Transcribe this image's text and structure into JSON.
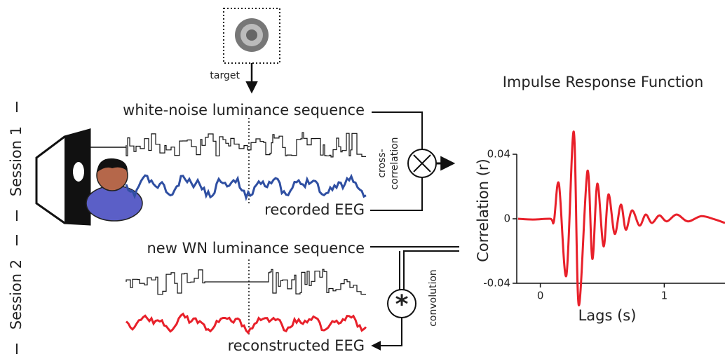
{
  "stimulus": {
    "target_label": "target"
  },
  "session_1": {
    "label": "Session 1",
    "sequence_label": "white-noise luminance sequence",
    "operation_label": [
      "cross-",
      "correlation"
    ],
    "output_label": "recorded EEG"
  },
  "session_2": {
    "label": "Session 2",
    "sequence_label": "new WN luminance sequence",
    "operation_label": "convolution",
    "output_label": "reconstructed EEG"
  },
  "irf_chart": {
    "type": "line",
    "title": "Impulse Response Function",
    "x_label": "Lags (s)",
    "y_label": "Correlation (r)",
    "x": [
      -0.18,
      -0.06,
      0.08,
      0.11,
      0.15,
      0.21,
      0.27,
      0.31,
      0.38,
      0.42,
      0.46,
      0.51,
      0.55,
      0.6,
      0.65,
      0.69,
      0.74,
      0.8,
      0.85,
      0.9,
      0.96,
      1.02,
      1.1,
      1.19,
      1.3,
      1.41,
      1.49
    ],
    "values": [
      0,
      -0.0005,
      0,
      -0.0016,
      0.0218,
      -0.0353,
      0.054,
      -0.0535,
      0.0296,
      -0.0249,
      0.0218,
      -0.0171,
      0.0151,
      -0.0094,
      0.0088,
      -0.0068,
      0.0052,
      -0.0042,
      0.0026,
      -0.0026,
      0.0021,
      -0.0016,
      0.0026,
      -0.0016,
      0.0016,
      -0.0005,
      -0.0026
    ],
    "color": "#e8202a",
    "xlim": [
      -0.19,
      1.49
    ],
    "ylim": [
      -0.04,
      0.04
    ],
    "xticks": [
      0,
      1
    ],
    "yticks": [
      0.04,
      0,
      -0.04
    ]
  }
}
